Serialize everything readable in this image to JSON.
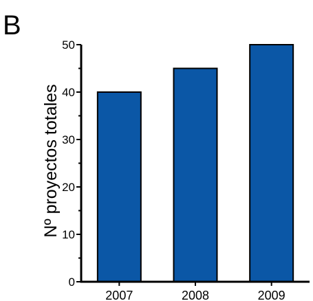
{
  "panel_label": "B",
  "chart_data": {
    "type": "bar",
    "title": "",
    "xlabel": "",
    "ylabel": "Nº proyectos totales",
    "categories": [
      "2007",
      "2008",
      "2009"
    ],
    "values": [
      40,
      45,
      50
    ],
    "ylim": [
      0,
      50
    ],
    "yticks": [
      0,
      10,
      20,
      30,
      40,
      50
    ],
    "minor_tick_step": 5,
    "grid": false,
    "legend": "none",
    "bar_color": "#0b57a6",
    "bar_edge_color": "#000000"
  }
}
